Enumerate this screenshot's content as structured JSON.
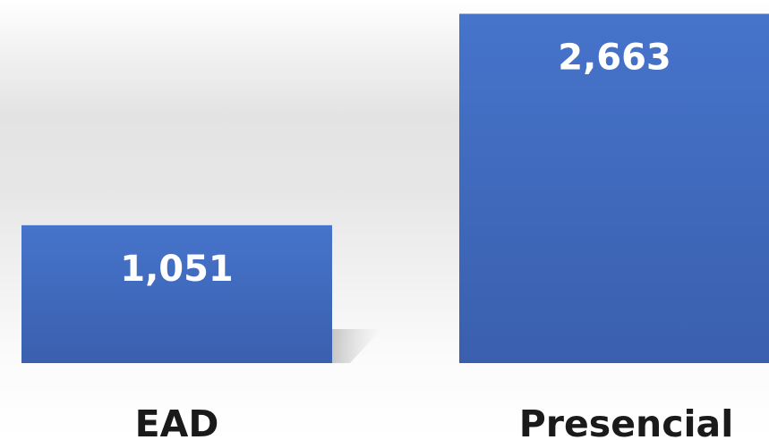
{
  "chart_data": {
    "type": "bar",
    "categories": [
      "EAD",
      "Presencial"
    ],
    "values": [
      1051,
      2663
    ],
    "value_labels": [
      "1,051",
      "2,663"
    ],
    "title": "",
    "xlabel": "",
    "ylabel": "",
    "ylim": [
      0,
      2700
    ],
    "grid": false,
    "legend": "none",
    "bar_color": "#3f67bb",
    "bar_color_top": "#4674cb",
    "bar_color_bottom": "#3a5fae"
  }
}
